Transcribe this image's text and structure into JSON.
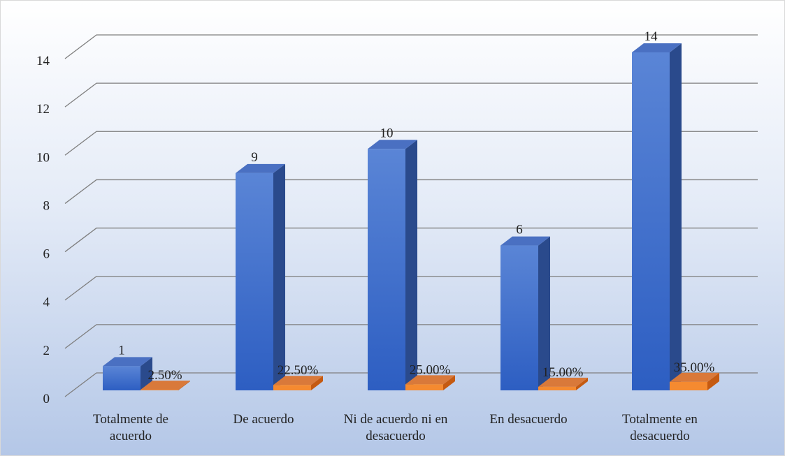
{
  "chart_data": {
    "type": "bar3d",
    "categories": [
      "Totalmente de acuerdo",
      "De acuerdo",
      "Ni de acuerdo ni en desacuerdo",
      "En desacuerdo",
      "Totalmente en desacuerdo"
    ],
    "series": [
      {
        "color": "#3a6acb",
        "values": [
          1,
          9,
          10,
          6,
          14
        ]
      },
      {
        "color": "#f07d2a",
        "values": [
          0.025,
          0.225,
          0.25,
          0.15,
          0.35
        ],
        "value_labels": [
          "2.50%",
          "22.50%",
          "25.00%",
          "15.00%",
          "35.00%"
        ]
      }
    ],
    "ylim": [
      0,
      14
    ],
    "yticks": [
      0,
      2,
      4,
      6,
      8,
      10,
      12,
      14
    ],
    "grid": true
  }
}
